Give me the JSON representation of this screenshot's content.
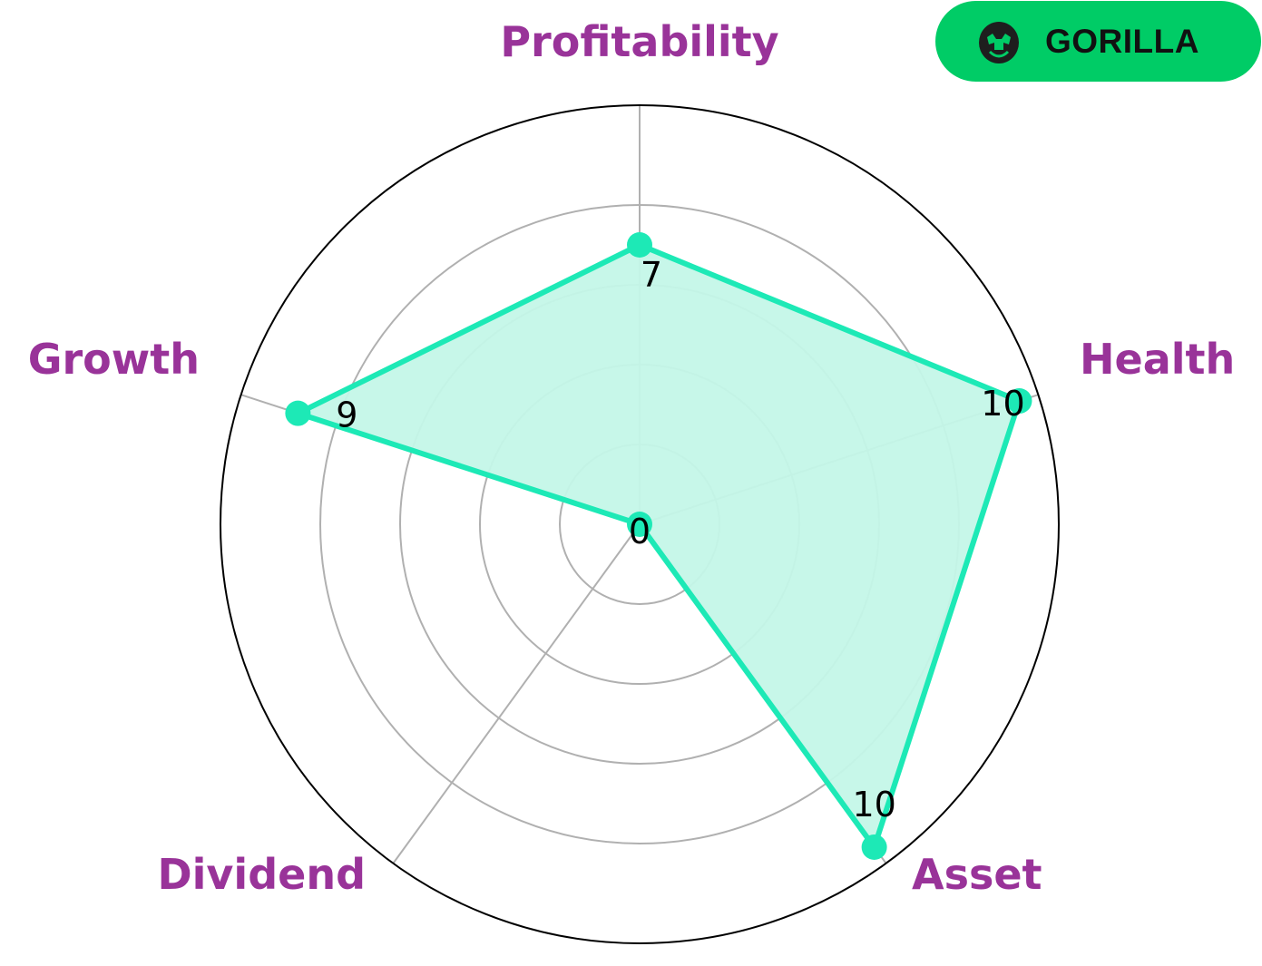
{
  "chart_data": {
    "type": "radar",
    "categories": [
      "Profitability",
      "Health",
      "Asset",
      "Dividend",
      "Growth"
    ],
    "values": [
      7,
      10,
      10,
      0,
      9
    ],
    "data_labels": [
      "7",
      "10",
      "10",
      "0",
      "9"
    ],
    "rlim": [
      0,
      10.5
    ],
    "grid_values": [
      2,
      4,
      6,
      8
    ],
    "grid": true,
    "colors": {
      "line": "#1de9b6",
      "fill": "#c4f7e8",
      "label": "#993399",
      "grid": "#b0b0b0",
      "outer": "#000000"
    }
  },
  "brand": {
    "name": "GORILLA",
    "logo_icon": "gorilla-icon",
    "color": "#00cc66"
  }
}
